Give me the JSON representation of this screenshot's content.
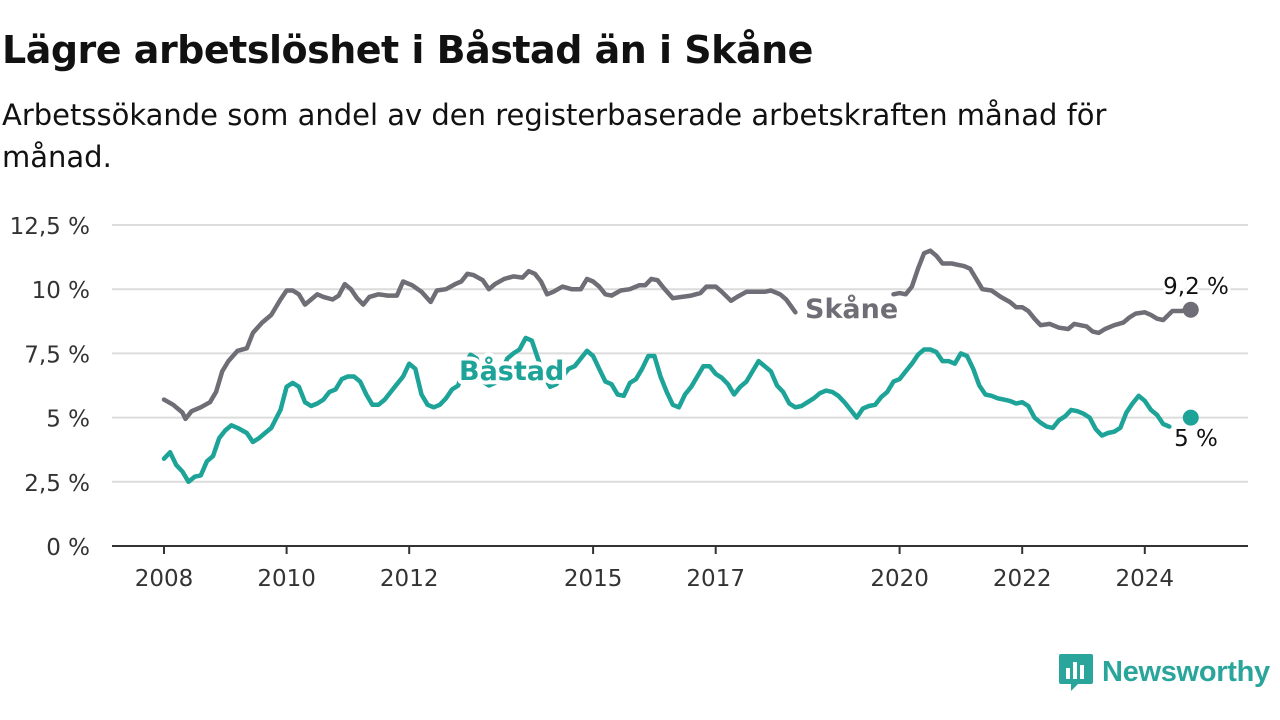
{
  "header": {
    "title": "Lägre arbetslöshet i Båstad än i Skåne",
    "subtitle": "Arbetssökande som andel av den registerbaserade arbetskraften månad för månad."
  },
  "brand": {
    "name": "Newsworthy",
    "icon": "newsworthy-logo-icon",
    "color": "#2aa59b"
  },
  "chart_data": {
    "type": "line",
    "title": "Lägre arbetslöshet i Båstad än i Skåne",
    "subtitle": "Arbetssökande som andel av den registerbaserade arbetskraften månad för månad.",
    "xlabel": "",
    "ylabel": "",
    "ylim": [
      0,
      13
    ],
    "xlim": [
      2007.85,
      2025.6
    ],
    "y_ticks": [
      0,
      2.5,
      5,
      7.5,
      10,
      12.5
    ],
    "y_tick_labels": [
      "0 %",
      "2,5 %",
      "5 %",
      "7,5 %",
      "10 %",
      "12,5 %"
    ],
    "x_ticks": [
      2008,
      2010,
      2012,
      2015,
      2017,
      2020,
      2022,
      2024
    ],
    "x_tick_labels": [
      "2008",
      "2010",
      "2012",
      "2015",
      "2017",
      "2020",
      "2022",
      "2024"
    ],
    "grid": "horizontal",
    "legend": "inline labels",
    "series": [
      {
        "name": "Skåne",
        "color": "#6f6d75",
        "end_label": "9,2 %",
        "points": [
          [
            2008.0,
            5.7
          ],
          [
            2008.15,
            5.5
          ],
          [
            2008.3,
            5.2
          ],
          [
            2008.35,
            4.95
          ],
          [
            2008.45,
            5.25
          ],
          [
            2008.6,
            5.4
          ],
          [
            2008.75,
            5.6
          ],
          [
            2008.85,
            6.0
          ],
          [
            2008.95,
            6.8
          ],
          [
            2009.05,
            7.2
          ],
          [
            2009.2,
            7.6
          ],
          [
            2009.35,
            7.7
          ],
          [
            2009.45,
            8.3
          ],
          [
            2009.6,
            8.7
          ],
          [
            2009.75,
            9.0
          ],
          [
            2009.9,
            9.6
          ],
          [
            2010.0,
            9.95
          ],
          [
            2010.1,
            9.95
          ],
          [
            2010.2,
            9.8
          ],
          [
            2010.3,
            9.4
          ],
          [
            2010.4,
            9.6
          ],
          [
            2010.5,
            9.8
          ],
          [
            2010.6,
            9.7
          ],
          [
            2010.75,
            9.6
          ],
          [
            2010.85,
            9.75
          ],
          [
            2010.95,
            10.2
          ],
          [
            2011.05,
            10.0
          ],
          [
            2011.15,
            9.65
          ],
          [
            2011.25,
            9.4
          ],
          [
            2011.35,
            9.7
          ],
          [
            2011.5,
            9.8
          ],
          [
            2011.65,
            9.75
          ],
          [
            2011.8,
            9.75
          ],
          [
            2011.9,
            10.3
          ],
          [
            2012.05,
            10.15
          ],
          [
            2012.2,
            9.9
          ],
          [
            2012.35,
            9.5
          ],
          [
            2012.45,
            9.95
          ],
          [
            2012.6,
            10.0
          ],
          [
            2012.75,
            10.2
          ],
          [
            2012.85,
            10.3
          ],
          [
            2012.95,
            10.6
          ],
          [
            2013.05,
            10.55
          ],
          [
            2013.2,
            10.35
          ],
          [
            2013.3,
            10.0
          ],
          [
            2013.4,
            10.2
          ],
          [
            2013.55,
            10.4
          ],
          [
            2013.7,
            10.5
          ],
          [
            2013.85,
            10.45
          ],
          [
            2013.95,
            10.7
          ],
          [
            2014.05,
            10.6
          ],
          [
            2014.15,
            10.3
          ],
          [
            2014.25,
            9.8
          ],
          [
            2014.35,
            9.9
          ],
          [
            2014.5,
            10.1
          ],
          [
            2014.65,
            10.0
          ],
          [
            2014.8,
            10.0
          ],
          [
            2014.9,
            10.4
          ],
          [
            2015.0,
            10.3
          ],
          [
            2015.1,
            10.1
          ],
          [
            2015.2,
            9.8
          ],
          [
            2015.3,
            9.75
          ],
          [
            2015.45,
            9.95
          ],
          [
            2015.6,
            10.0
          ],
          [
            2015.75,
            10.15
          ],
          [
            2015.85,
            10.15
          ],
          [
            2015.95,
            10.4
          ],
          [
            2016.05,
            10.35
          ],
          [
            2016.15,
            10.05
          ],
          [
            2016.3,
            9.65
          ],
          [
            2016.45,
            9.7
          ],
          [
            2016.6,
            9.75
          ],
          [
            2016.75,
            9.85
          ],
          [
            2016.85,
            10.1
          ],
          [
            2017.0,
            10.1
          ],
          [
            2017.1,
            9.9
          ],
          [
            2017.25,
            9.55
          ],
          [
            2017.35,
            9.7
          ],
          [
            2017.5,
            9.9
          ],
          [
            2017.65,
            9.9
          ],
          [
            2017.8,
            9.9
          ],
          [
            2017.9,
            9.95
          ],
          [
            2018.05,
            9.8
          ],
          [
            2018.15,
            9.6
          ],
          [
            2018.3,
            9.1
          ]
        ],
        "points_after_gap": [
          [
            2019.9,
            9.8
          ],
          [
            2020.0,
            9.85
          ],
          [
            2020.1,
            9.8
          ],
          [
            2020.2,
            10.1
          ],
          [
            2020.3,
            10.8
          ],
          [
            2020.4,
            11.4
          ],
          [
            2020.5,
            11.5
          ],
          [
            2020.6,
            11.3
          ],
          [
            2020.7,
            11.0
          ],
          [
            2020.85,
            11.0
          ],
          [
            2020.95,
            10.95
          ],
          [
            2021.05,
            10.9
          ],
          [
            2021.15,
            10.8
          ],
          [
            2021.25,
            10.4
          ],
          [
            2021.35,
            10.0
          ],
          [
            2021.5,
            9.95
          ],
          [
            2021.65,
            9.7
          ],
          [
            2021.8,
            9.5
          ],
          [
            2021.9,
            9.3
          ],
          [
            2022.0,
            9.3
          ],
          [
            2022.1,
            9.15
          ],
          [
            2022.2,
            8.85
          ],
          [
            2022.3,
            8.6
          ],
          [
            2022.45,
            8.65
          ],
          [
            2022.6,
            8.5
          ],
          [
            2022.75,
            8.45
          ],
          [
            2022.85,
            8.65
          ],
          [
            2022.95,
            8.6
          ],
          [
            2023.05,
            8.55
          ],
          [
            2023.15,
            8.35
          ],
          [
            2023.25,
            8.3
          ],
          [
            2023.35,
            8.45
          ],
          [
            2023.5,
            8.6
          ],
          [
            2023.65,
            8.7
          ],
          [
            2023.75,
            8.9
          ],
          [
            2023.85,
            9.05
          ],
          [
            2024.0,
            9.1
          ],
          [
            2024.1,
            9.0
          ],
          [
            2024.2,
            8.85
          ],
          [
            2024.3,
            8.8
          ],
          [
            2024.45,
            9.15
          ],
          [
            2024.6,
            9.15
          ],
          [
            2024.7,
            9.2
          ],
          [
            2024.75,
            9.2
          ]
        ]
      },
      {
        "name": "Båstad",
        "color": "#1da397",
        "end_label": "5 %",
        "points": [
          [
            2008.0,
            3.4
          ],
          [
            2008.1,
            3.65
          ],
          [
            2008.2,
            3.15
          ],
          [
            2008.3,
            2.9
          ],
          [
            2008.4,
            2.5
          ],
          [
            2008.5,
            2.7
          ],
          [
            2008.6,
            2.75
          ],
          [
            2008.7,
            3.3
          ],
          [
            2008.8,
            3.5
          ],
          [
            2008.9,
            4.2
          ],
          [
            2009.0,
            4.5
          ],
          [
            2009.1,
            4.7
          ],
          [
            2009.2,
            4.6
          ],
          [
            2009.35,
            4.4
          ],
          [
            2009.45,
            4.05
          ],
          [
            2009.55,
            4.2
          ],
          [
            2009.65,
            4.4
          ],
          [
            2009.75,
            4.6
          ],
          [
            2009.9,
            5.3
          ],
          [
            2010.0,
            6.2
          ],
          [
            2010.1,
            6.35
          ],
          [
            2010.2,
            6.2
          ],
          [
            2010.3,
            5.6
          ],
          [
            2010.4,
            5.45
          ],
          [
            2010.5,
            5.55
          ],
          [
            2010.6,
            5.7
          ],
          [
            2010.7,
            6.0
          ],
          [
            2010.8,
            6.1
          ],
          [
            2010.9,
            6.5
          ],
          [
            2011.0,
            6.6
          ],
          [
            2011.1,
            6.6
          ],
          [
            2011.2,
            6.4
          ],
          [
            2011.3,
            5.9
          ],
          [
            2011.4,
            5.5
          ],
          [
            2011.5,
            5.5
          ],
          [
            2011.6,
            5.7
          ],
          [
            2011.7,
            6.0
          ],
          [
            2011.8,
            6.3
          ],
          [
            2011.9,
            6.6
          ],
          [
            2012.0,
            7.1
          ],
          [
            2012.1,
            6.9
          ],
          [
            2012.2,
            5.9
          ],
          [
            2012.3,
            5.5
          ],
          [
            2012.4,
            5.4
          ],
          [
            2012.5,
            5.5
          ],
          [
            2012.6,
            5.75
          ],
          [
            2012.7,
            6.1
          ],
          [
            2012.8,
            6.25
          ],
          [
            2012.9,
            7.05
          ],
          [
            2013.0,
            7.45
          ],
          [
            2013.1,
            7.3
          ],
          [
            2013.2,
            6.4
          ],
          [
            2013.3,
            6.25
          ],
          [
            2013.4,
            6.35
          ],
          [
            2013.5,
            6.75
          ],
          [
            2013.6,
            7.3
          ],
          [
            2013.7,
            7.5
          ],
          [
            2013.8,
            7.65
          ],
          [
            2013.9,
            8.1
          ],
          [
            2014.0,
            8.0
          ],
          [
            2014.1,
            7.3
          ],
          [
            2014.2,
            6.6
          ],
          [
            2014.3,
            6.2
          ],
          [
            2014.4,
            6.3
          ],
          [
            2014.5,
            6.6
          ],
          [
            2014.6,
            6.9
          ],
          [
            2014.7,
            7.0
          ],
          [
            2014.8,
            7.3
          ],
          [
            2014.9,
            7.6
          ],
          [
            2015.0,
            7.4
          ],
          [
            2015.1,
            6.9
          ],
          [
            2015.2,
            6.4
          ],
          [
            2015.3,
            6.3
          ],
          [
            2015.4,
            5.9
          ],
          [
            2015.5,
            5.85
          ],
          [
            2015.6,
            6.35
          ],
          [
            2015.7,
            6.5
          ],
          [
            2015.8,
            6.9
          ],
          [
            2015.9,
            7.4
          ],
          [
            2016.0,
            7.4
          ],
          [
            2016.1,
            6.6
          ],
          [
            2016.2,
            6.0
          ],
          [
            2016.3,
            5.5
          ],
          [
            2016.4,
            5.4
          ],
          [
            2016.5,
            5.9
          ],
          [
            2016.6,
            6.2
          ],
          [
            2016.7,
            6.6
          ],
          [
            2016.8,
            7.0
          ],
          [
            2016.9,
            7.0
          ],
          [
            2017.0,
            6.7
          ],
          [
            2017.1,
            6.55
          ],
          [
            2017.2,
            6.3
          ],
          [
            2017.3,
            5.9
          ],
          [
            2017.4,
            6.2
          ],
          [
            2017.5,
            6.4
          ],
          [
            2017.6,
            6.8
          ],
          [
            2017.7,
            7.2
          ],
          [
            2017.8,
            7.0
          ],
          [
            2017.9,
            6.8
          ],
          [
            2018.0,
            6.25
          ],
          [
            2018.1,
            6.0
          ],
          [
            2018.2,
            5.55
          ],
          [
            2018.3,
            5.4
          ],
          [
            2018.4,
            5.45
          ],
          [
            2018.5,
            5.6
          ],
          [
            2018.6,
            5.75
          ],
          [
            2018.7,
            5.95
          ],
          [
            2018.8,
            6.05
          ],
          [
            2018.9,
            6.0
          ],
          [
            2019.0,
            5.85
          ],
          [
            2019.1,
            5.6
          ],
          [
            2019.2,
            5.3
          ],
          [
            2019.3,
            5.0
          ],
          [
            2019.4,
            5.35
          ],
          [
            2019.5,
            5.45
          ],
          [
            2019.6,
            5.5
          ],
          [
            2019.7,
            5.8
          ],
          [
            2019.8,
            6.0
          ],
          [
            2019.9,
            6.4
          ],
          [
            2020.0,
            6.5
          ],
          [
            2020.1,
            6.8
          ],
          [
            2020.2,
            7.1
          ],
          [
            2020.3,
            7.45
          ],
          [
            2020.4,
            7.65
          ],
          [
            2020.5,
            7.65
          ],
          [
            2020.6,
            7.55
          ],
          [
            2020.7,
            7.2
          ],
          [
            2020.8,
            7.2
          ],
          [
            2020.9,
            7.1
          ],
          [
            2021.0,
            7.5
          ],
          [
            2021.1,
            7.4
          ],
          [
            2021.2,
            6.9
          ],
          [
            2021.3,
            6.25
          ],
          [
            2021.4,
            5.9
          ],
          [
            2021.5,
            5.85
          ],
          [
            2021.6,
            5.75
          ],
          [
            2021.7,
            5.7
          ],
          [
            2021.8,
            5.65
          ],
          [
            2021.9,
            5.55
          ],
          [
            2022.0,
            5.6
          ],
          [
            2022.1,
            5.45
          ],
          [
            2022.2,
            5.0
          ],
          [
            2022.3,
            4.8
          ],
          [
            2022.4,
            4.65
          ],
          [
            2022.5,
            4.6
          ],
          [
            2022.6,
            4.9
          ],
          [
            2022.7,
            5.05
          ],
          [
            2022.8,
            5.3
          ],
          [
            2022.9,
            5.25
          ],
          [
            2023.0,
            5.15
          ],
          [
            2023.1,
            5.0
          ],
          [
            2023.2,
            4.55
          ],
          [
            2023.3,
            4.3
          ],
          [
            2023.4,
            4.4
          ],
          [
            2023.5,
            4.45
          ],
          [
            2023.6,
            4.6
          ],
          [
            2023.7,
            5.2
          ],
          [
            2023.8,
            5.55
          ],
          [
            2023.9,
            5.85
          ],
          [
            2024.0,
            5.65
          ],
          [
            2024.1,
            5.3
          ],
          [
            2024.2,
            5.1
          ],
          [
            2024.3,
            4.75
          ],
          [
            2024.4,
            4.65
          ]
        ],
        "end_point": [
          2024.75,
          5.0
        ]
      }
    ]
  }
}
